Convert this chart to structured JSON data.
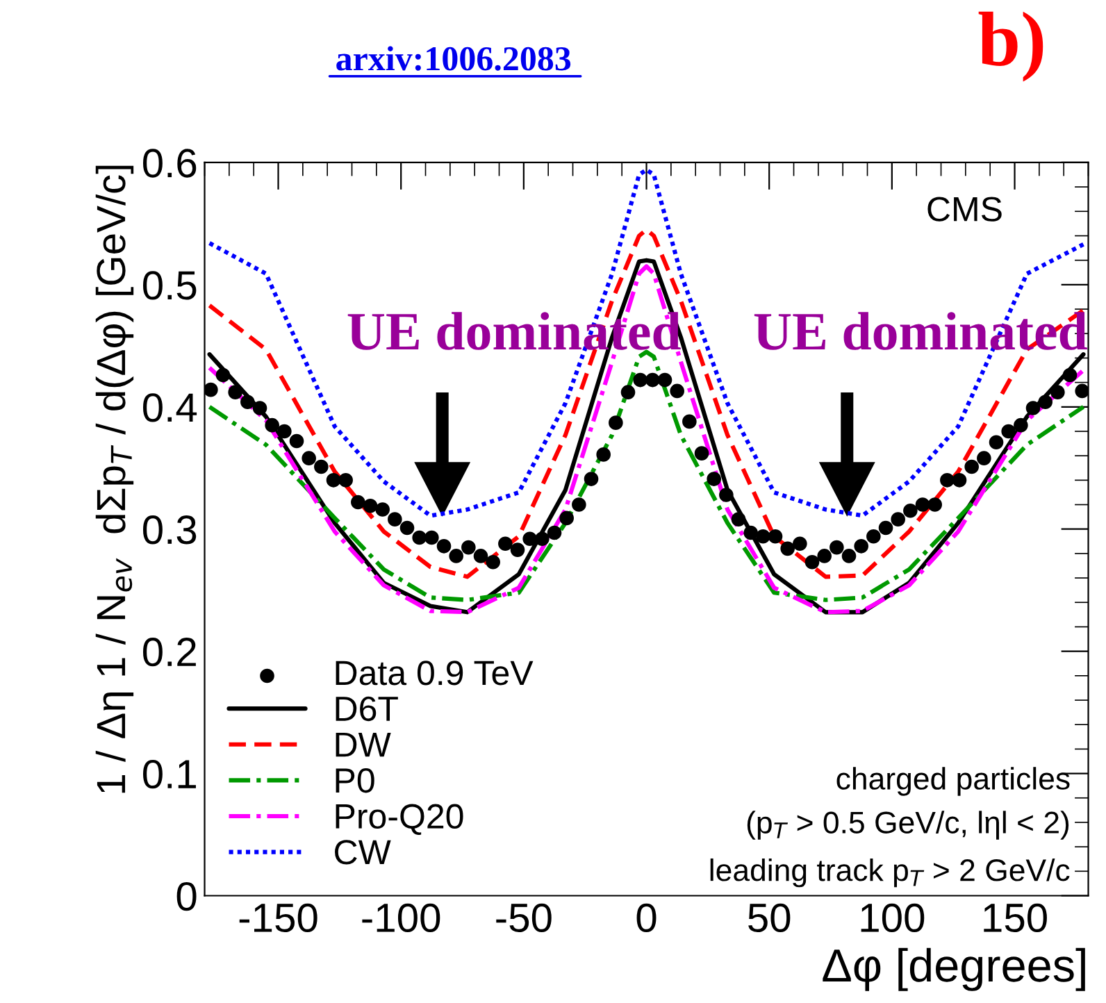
{
  "chart_data": {
    "type": "line",
    "title": "arxiv:1006.2083",
    "xlabel": "Δφ [degrees]",
    "ylabel": "1 / Δη 1 / N$_{ev}$  dΣp$_{T}$ / d(Δφ) [GeV/c]",
    "xlim": [
      -180,
      180
    ],
    "xticks": [
      -150,
      -100,
      -50,
      0,
      50,
      100,
      150
    ],
    "ylim": [
      0,
      0.6
    ],
    "yticks": [
      0,
      0.1,
      0.2,
      0.3,
      0.4,
      0.5,
      0.6
    ],
    "grid": false,
    "legend": "bottom left",
    "annotations": [
      "b)",
      "CMS",
      "UE dominated",
      "UE dominated",
      "charged particles",
      "(p$_{T}$ > 0.5 GeV/c, lηl < 2)",
      "leading track p$_{T}$ > 2 GeV/c"
    ],
    "series": [
      {
        "name": "Data 0.9 TeV",
        "type": "scatter",
        "marker": "circle",
        "color": "#000000",
        "x": [
          -177.5,
          -172.5,
          -167.5,
          -162.5,
          -157.5,
          -152.5,
          -147.5,
          -142.5,
          -137.5,
          -132.5,
          -127.5,
          -122.5,
          -117.5,
          -112.5,
          -107.5,
          -102.5,
          -97.5,
          -92.5,
          -87.5,
          -82.5,
          -77.5,
          -72.5,
          -67.5,
          -62.5,
          -57.5,
          -52.5,
          -47.5,
          -42.5,
          -37.5,
          -32.5,
          -27.5,
          -22.5,
          -17.5,
          -12.5,
          -7.5,
          -2.5,
          2.5,
          7.5,
          12.5,
          17.5,
          22.5,
          27.5,
          32.5,
          37.5,
          42.5,
          47.5,
          52.5,
          57.5,
          62.5,
          67.5,
          72.5,
          77.5,
          82.5,
          87.5,
          92.5,
          97.5,
          102.5,
          107.5,
          112.5,
          117.5,
          122.5,
          127.5,
          132.5,
          137.5,
          142.5,
          147.5,
          152.5,
          157.5,
          162.5,
          167.5,
          172.5,
          177.5
        ],
        "values": [
          0.414,
          0.426,
          0.412,
          0.404,
          0.399,
          0.385,
          0.38,
          0.372,
          0.358,
          0.351,
          0.34,
          0.34,
          0.322,
          0.319,
          0.316,
          0.308,
          0.301,
          0.293,
          0.293,
          0.286,
          0.278,
          0.285,
          0.278,
          0.273,
          0.288,
          0.283,
          0.292,
          0.292,
          0.297,
          0.309,
          0.32,
          0.341,
          0.361,
          0.387,
          0.412,
          0.422,
          0.422,
          0.422,
          0.413,
          0.388,
          0.362,
          0.341,
          0.328,
          0.308,
          0.297,
          0.294,
          0.294,
          0.284,
          0.288,
          0.273,
          0.278,
          0.285,
          0.278,
          0.286,
          0.294,
          0.301,
          0.308,
          0.315,
          0.32,
          0.32,
          0.34,
          0.34,
          0.351,
          0.358,
          0.371,
          0.38,
          0.385,
          0.399,
          0.404,
          0.412,
          0.426,
          0.413
        ]
      },
      {
        "name": "D6T",
        "line_style": "solid",
        "color": "#000000",
        "x": [
          -178,
          -155,
          -127,
          -107,
          -88,
          -73,
          -52,
          -33,
          -14,
          -3,
          0,
          3,
          14,
          33,
          52,
          73,
          88,
          107,
          127,
          155,
          178
        ],
        "values": [
          0.443,
          0.392,
          0.305,
          0.256,
          0.237,
          0.232,
          0.263,
          0.332,
          0.457,
          0.519,
          0.52,
          0.519,
          0.457,
          0.332,
          0.263,
          0.232,
          0.232,
          0.256,
          0.305,
          0.392,
          0.443
        ]
      },
      {
        "name": "DW",
        "line_style": "dashed",
        "color": "#ff0000",
        "x": [
          -178,
          -155,
          -127,
          -107,
          -88,
          -73,
          -52,
          -33,
          -14,
          -3,
          0,
          3,
          14,
          33,
          52,
          73,
          88,
          107,
          127,
          155,
          178
        ],
        "values": [
          0.483,
          0.447,
          0.347,
          0.298,
          0.269,
          0.261,
          0.294,
          0.377,
          0.487,
          0.54,
          0.545,
          0.54,
          0.487,
          0.377,
          0.294,
          0.261,
          0.262,
          0.298,
          0.347,
          0.447,
          0.479
        ]
      },
      {
        "name": "P0",
        "line_style": "dashdot",
        "color": "#009900",
        "x": [
          -178,
          -155,
          -127,
          -107,
          -88,
          -73,
          -52,
          -33,
          -14,
          -3,
          0,
          3,
          14,
          33,
          52,
          73,
          88,
          107,
          127,
          155,
          178
        ],
        "values": [
          0.4,
          0.369,
          0.309,
          0.267,
          0.244,
          0.242,
          0.248,
          0.305,
          0.377,
          0.441,
          0.445,
          0.441,
          0.377,
          0.305,
          0.248,
          0.242,
          0.244,
          0.267,
          0.309,
          0.369,
          0.4
        ]
      },
      {
        "name": "Pro-Q20",
        "line_style": "dashdot",
        "color": "#ff00ff",
        "x": [
          -178,
          -155,
          -127,
          -107,
          -88,
          -73,
          -52,
          -33,
          -14,
          -3,
          0,
          3,
          14,
          33,
          52,
          73,
          88,
          107,
          127,
          155,
          178
        ],
        "values": [
          0.432,
          0.389,
          0.298,
          0.254,
          0.233,
          0.232,
          0.252,
          0.316,
          0.437,
          0.509,
          0.515,
          0.509,
          0.437,
          0.316,
          0.252,
          0.232,
          0.233,
          0.254,
          0.298,
          0.389,
          0.43
        ]
      },
      {
        "name": "CW",
        "line_style": "dotted",
        "color": "#0000ff",
        "x": [
          -178,
          -155,
          -127,
          -107,
          -88,
          -73,
          -52,
          -33,
          -14,
          -3,
          0,
          3,
          14,
          33,
          52,
          73,
          88,
          107,
          127,
          155,
          178
        ],
        "values": [
          0.534,
          0.509,
          0.384,
          0.339,
          0.311,
          0.316,
          0.33,
          0.403,
          0.509,
          0.59,
          0.594,
          0.59,
          0.509,
          0.403,
          0.33,
          0.316,
          0.311,
          0.339,
          0.384,
          0.509,
          0.533
        ]
      }
    ]
  }
}
